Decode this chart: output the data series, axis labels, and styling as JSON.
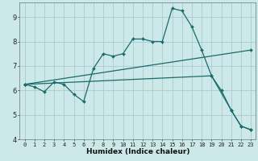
{
  "xlabel": "Humidex (Indice chaleur)",
  "background_color": "#cce8e8",
  "grid_color": "#aacccc",
  "line_color": "#1a6b6b",
  "xlim": [
    -0.5,
    23.5
  ],
  "ylim": [
    4,
    9.6
  ],
  "yticks": [
    4,
    5,
    6,
    7,
    8,
    9
  ],
  "xticks": [
    0,
    1,
    2,
    3,
    4,
    5,
    6,
    7,
    8,
    9,
    10,
    11,
    12,
    13,
    14,
    15,
    16,
    17,
    18,
    19,
    20,
    21,
    22,
    23
  ],
  "series1_x": [
    0,
    1,
    2,
    3,
    4,
    5,
    6,
    7,
    8,
    9,
    10,
    11,
    12,
    13,
    14,
    15,
    16,
    17,
    18,
    19,
    20,
    21,
    22,
    23
  ],
  "series1_y": [
    6.25,
    6.15,
    5.95,
    6.35,
    6.25,
    5.85,
    5.55,
    6.9,
    7.5,
    7.4,
    7.5,
    8.1,
    8.1,
    8.0,
    8.0,
    9.35,
    9.25,
    8.6,
    7.65,
    6.6,
    6.0,
    5.2,
    4.55,
    4.4
  ],
  "series2_x": [
    0,
    23
  ],
  "series2_y": [
    6.25,
    7.65
  ],
  "series3_x": [
    0,
    19,
    21,
    22,
    23
  ],
  "series3_y": [
    6.25,
    6.6,
    5.2,
    4.55,
    4.4
  ],
  "marker_size": 2.0,
  "line_width": 0.9,
  "tick_fontsize": 5.0,
  "xlabel_fontsize": 6.5
}
